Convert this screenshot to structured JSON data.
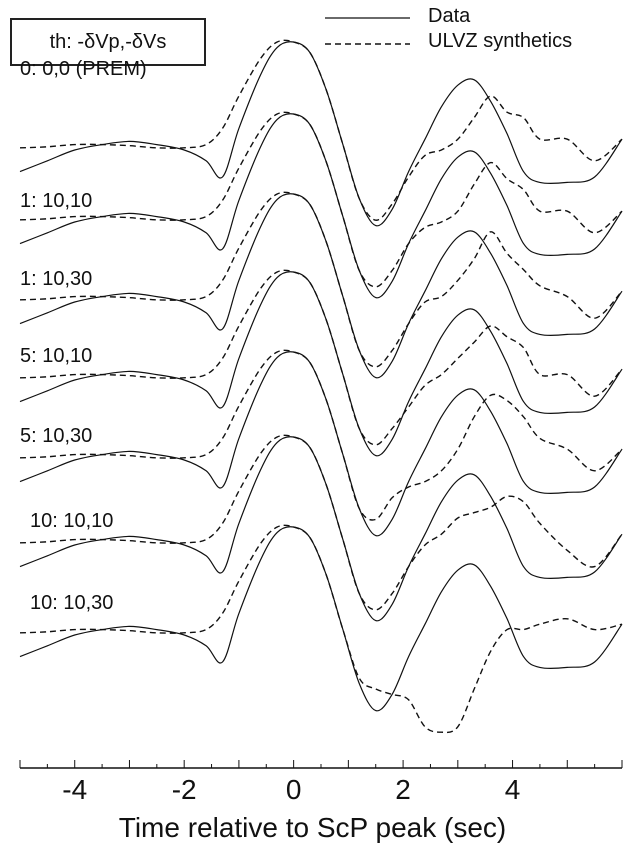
{
  "chart_data": {
    "type": "line",
    "title": "",
    "box_label": "th: -δVp,-δVs",
    "xlabel": "Time relative to ScP peak (sec)",
    "ylabel": "",
    "xlim": [
      -5,
      6
    ],
    "xticks": [
      -4,
      -2,
      0,
      2,
      4
    ],
    "xtick_labels": [
      "-4",
      "-2",
      "0",
      "2",
      "4"
    ],
    "grid": false,
    "legend_position": "top-right",
    "legend": [
      {
        "name": "Data",
        "style": "solid"
      },
      {
        "name": "ULVZ synthetics",
        "style": "dashed"
      }
    ],
    "traces": [
      {
        "label": "0: 0,0 (PREM)",
        "data": {
          "x": [
            -5,
            -4.5,
            -4,
            -3.5,
            -3,
            -2.5,
            -2,
            -1.6,
            -1.3,
            -1,
            -0.6,
            -0.3,
            0,
            0.3,
            0.6,
            0.9,
            1.2,
            1.5,
            1.8,
            2.1,
            2.4,
            2.7,
            3,
            3.3,
            3.6,
            3.9,
            4.2,
            4.5,
            5,
            5.5,
            6
          ],
          "y": [
            -0.2,
            -0.1,
            0,
            0.05,
            0.08,
            0.05,
            0,
            -0.1,
            -0.25,
            0.2,
            0.7,
            0.95,
            1,
            0.9,
            0.55,
            0.05,
            -0.45,
            -0.7,
            -0.55,
            -0.2,
            0.1,
            0.4,
            0.6,
            0.65,
            0.45,
            0.15,
            -0.2,
            -0.3,
            -0.3,
            -0.25,
            0.1
          ]
        },
        "synthetic": {
          "x": [
            -5,
            -4.5,
            -4,
            -3.5,
            -3,
            -2.5,
            -2,
            -1.6,
            -1.3,
            -1,
            -0.6,
            -0.3,
            0,
            0.3,
            0.6,
            0.9,
            1.2,
            1.5,
            1.8,
            2.1,
            2.4,
            2.7,
            3,
            3.3,
            3.6,
            3.9,
            4.2,
            4.5,
            5,
            5.5,
            6
          ],
          "y": [
            0.02,
            0.03,
            0.05,
            0.05,
            0.04,
            0.02,
            0.02,
            0.05,
            0.2,
            0.5,
            0.85,
            1,
            1,
            0.9,
            0.55,
            0.05,
            -0.45,
            -0.65,
            -0.5,
            -0.25,
            -0.05,
            0,
            0.1,
            0.3,
            0.5,
            0.35,
            0.3,
            0.1,
            0.1,
            -0.1,
            0.1
          ]
        }
      },
      {
        "label": "1: 10,10",
        "data": {
          "x": [
            -5,
            -4.5,
            -4,
            -3.5,
            -3,
            -2.5,
            -2,
            -1.6,
            -1.3,
            -1,
            -0.6,
            -0.3,
            0,
            0.3,
            0.6,
            0.9,
            1.2,
            1.5,
            1.8,
            2.1,
            2.4,
            2.7,
            3,
            3.3,
            3.6,
            3.9,
            4.2,
            4.5,
            5,
            5.5,
            6
          ],
          "y": [
            -0.2,
            -0.1,
            0,
            0.05,
            0.08,
            0.05,
            0,
            -0.1,
            -0.25,
            0.2,
            0.7,
            0.95,
            1,
            0.9,
            0.55,
            0.05,
            -0.45,
            -0.7,
            -0.55,
            -0.2,
            0.1,
            0.4,
            0.6,
            0.65,
            0.45,
            0.15,
            -0.2,
            -0.3,
            -0.3,
            -0.25,
            0.1
          ]
        },
        "synthetic": {
          "x": [
            -5,
            -4.5,
            -4,
            -3.5,
            -3,
            -2.5,
            -2,
            -1.6,
            -1.3,
            -1,
            -0.6,
            -0.3,
            0,
            0.3,
            0.6,
            0.9,
            1.2,
            1.5,
            1.8,
            2.1,
            2.4,
            2.7,
            3,
            3.3,
            3.6,
            3.9,
            4.2,
            4.5,
            5,
            5.5,
            6
          ],
          "y": [
            0.02,
            0.03,
            0.05,
            0.05,
            0.04,
            0.02,
            0.02,
            0.05,
            0.2,
            0.5,
            0.85,
            1,
            1,
            0.9,
            0.55,
            0.05,
            -0.45,
            -0.6,
            -0.45,
            -0.2,
            -0.05,
            0,
            0.1,
            0.35,
            0.55,
            0.4,
            0.3,
            0.1,
            0.1,
            -0.1,
            0.1
          ]
        }
      },
      {
        "label": "1: 10,30",
        "data": {
          "x": [
            -5,
            -4.5,
            -4,
            -3.5,
            -3,
            -2.5,
            -2,
            -1.6,
            -1.3,
            -1,
            -0.6,
            -0.3,
            0,
            0.3,
            0.6,
            0.9,
            1.2,
            1.5,
            1.8,
            2.1,
            2.4,
            2.7,
            3,
            3.3,
            3.6,
            3.9,
            4.2,
            4.5,
            5,
            5.5,
            6
          ],
          "y": [
            -0.2,
            -0.1,
            0,
            0.05,
            0.08,
            0.05,
            0,
            -0.1,
            -0.25,
            0.2,
            0.7,
            0.95,
            1,
            0.9,
            0.55,
            0.05,
            -0.45,
            -0.7,
            -0.55,
            -0.2,
            0.1,
            0.4,
            0.6,
            0.65,
            0.45,
            0.15,
            -0.2,
            -0.3,
            -0.3,
            -0.25,
            0.1
          ]
        },
        "synthetic": {
          "x": [
            -5,
            -4.5,
            -4,
            -3.5,
            -3,
            -2.5,
            -2,
            -1.6,
            -1.3,
            -1,
            -0.6,
            -0.3,
            0,
            0.3,
            0.6,
            0.9,
            1.2,
            1.5,
            1.8,
            2.1,
            2.4,
            2.7,
            3,
            3.3,
            3.6,
            3.9,
            4.2,
            4.5,
            5,
            5.5,
            6
          ],
          "y": [
            0.02,
            0.03,
            0.05,
            0.05,
            0.04,
            0.02,
            0.02,
            0.05,
            0.2,
            0.5,
            0.85,
            1,
            1,
            0.9,
            0.55,
            0.05,
            -0.45,
            -0.6,
            -0.45,
            -0.2,
            0,
            0.05,
            0.2,
            0.4,
            0.65,
            0.45,
            0.3,
            0.15,
            0.05,
            -0.15,
            0.1
          ]
        }
      },
      {
        "label": "5: 10,10",
        "data": {
          "x": [
            -5,
            -4.5,
            -4,
            -3.5,
            -3,
            -2.5,
            -2,
            -1.6,
            -1.3,
            -1,
            -0.6,
            -0.3,
            0,
            0.3,
            0.6,
            0.9,
            1.2,
            1.5,
            1.8,
            2.1,
            2.4,
            2.7,
            3,
            3.3,
            3.6,
            3.9,
            4.2,
            4.5,
            5,
            5.5,
            6
          ],
          "y": [
            -0.2,
            -0.1,
            0,
            0.05,
            0.08,
            0.05,
            0,
            -0.1,
            -0.25,
            0.2,
            0.7,
            0.95,
            1,
            0.9,
            0.55,
            0.05,
            -0.45,
            -0.7,
            -0.55,
            -0.2,
            0.1,
            0.4,
            0.6,
            0.65,
            0.45,
            0.15,
            -0.2,
            -0.3,
            -0.3,
            -0.25,
            0.1
          ]
        },
        "synthetic": {
          "x": [
            -5,
            -4.5,
            -4,
            -3.5,
            -3,
            -2.5,
            -2,
            -1.6,
            -1.3,
            -1,
            -0.6,
            -0.3,
            0,
            0.3,
            0.6,
            0.9,
            1.2,
            1.5,
            1.8,
            2.1,
            2.4,
            2.7,
            3,
            3.3,
            3.6,
            3.9,
            4.2,
            4.5,
            5,
            5.5,
            6
          ],
          "y": [
            0.02,
            0.03,
            0.05,
            0.05,
            0.04,
            0.02,
            0.02,
            0.05,
            0.2,
            0.5,
            0.85,
            1,
            1,
            0.9,
            0.55,
            0.05,
            -0.45,
            -0.6,
            -0.45,
            -0.25,
            -0.05,
            0.05,
            0.2,
            0.35,
            0.5,
            0.4,
            0.3,
            0.05,
            0.05,
            -0.15,
            0.1
          ]
        }
      },
      {
        "label": "5: 10,30",
        "data": {
          "x": [
            -5,
            -4.5,
            -4,
            -3.5,
            -3,
            -2.5,
            -2,
            -1.6,
            -1.3,
            -1,
            -0.6,
            -0.3,
            0,
            0.3,
            0.6,
            0.9,
            1.2,
            1.5,
            1.8,
            2.1,
            2.4,
            2.7,
            3,
            3.3,
            3.6,
            3.9,
            4.2,
            4.5,
            5,
            5.5,
            6
          ],
          "y": [
            -0.2,
            -0.1,
            0,
            0.05,
            0.08,
            0.05,
            0,
            -0.1,
            -0.25,
            0.2,
            0.7,
            0.95,
            1,
            0.9,
            0.55,
            0.05,
            -0.45,
            -0.7,
            -0.55,
            -0.2,
            0.1,
            0.4,
            0.6,
            0.65,
            0.45,
            0.15,
            -0.2,
            -0.3,
            -0.3,
            -0.25,
            0.1
          ]
        },
        "synthetic": {
          "x": [
            -5,
            -4.5,
            -4,
            -3.5,
            -3,
            -2.5,
            -2,
            -1.6,
            -1.3,
            -1,
            -0.6,
            -0.3,
            0,
            0.3,
            0.6,
            0.9,
            1.2,
            1.5,
            1.8,
            2.1,
            2.4,
            2.7,
            3,
            3.3,
            3.6,
            3.9,
            4.2,
            4.5,
            5,
            5.5,
            6
          ],
          "y": [
            0.02,
            0.03,
            0.05,
            0.05,
            0.04,
            0.02,
            0.02,
            0.05,
            0.2,
            0.5,
            0.85,
            1,
            1,
            0.9,
            0.55,
            0.05,
            -0.45,
            -0.55,
            -0.35,
            -0.25,
            -0.2,
            -0.1,
            0.1,
            0.4,
            0.6,
            0.55,
            0.4,
            0.2,
            0.1,
            -0.1,
            0.1
          ]
        }
      },
      {
        "label": "10: 10,10",
        "data": {
          "x": [
            -5,
            -4.5,
            -4,
            -3.5,
            -3,
            -2.5,
            -2,
            -1.6,
            -1.3,
            -1,
            -0.6,
            -0.3,
            0,
            0.3,
            0.6,
            0.9,
            1.2,
            1.5,
            1.8,
            2.1,
            2.4,
            2.7,
            3,
            3.3,
            3.6,
            3.9,
            4.2,
            4.5,
            5,
            5.5,
            6
          ],
          "y": [
            -0.2,
            -0.1,
            0,
            0.05,
            0.08,
            0.05,
            0,
            -0.1,
            -0.25,
            0.2,
            0.7,
            0.95,
            1,
            0.9,
            0.55,
            0.05,
            -0.45,
            -0.7,
            -0.55,
            -0.2,
            0.1,
            0.4,
            0.6,
            0.65,
            0.45,
            0.15,
            -0.2,
            -0.3,
            -0.3,
            -0.25,
            0.1
          ]
        },
        "synthetic": {
          "x": [
            -5,
            -4.5,
            -4,
            -3.5,
            -3,
            -2.5,
            -2,
            -1.6,
            -1.3,
            -1,
            -0.6,
            -0.3,
            0,
            0.3,
            0.6,
            0.9,
            1.2,
            1.5,
            1.8,
            2.1,
            2.4,
            2.7,
            3,
            3.3,
            3.6,
            3.9,
            4.2,
            4.5,
            5,
            5.5,
            6
          ],
          "y": [
            0.02,
            0.03,
            0.05,
            0.05,
            0.04,
            0.02,
            0.02,
            0.05,
            0.2,
            0.5,
            0.85,
            1,
            1,
            0.9,
            0.55,
            0.05,
            -0.45,
            -0.6,
            -0.45,
            -0.2,
            0,
            0.1,
            0.25,
            0.3,
            0.35,
            0.45,
            0.4,
            0.2,
            -0.05,
            -0.2,
            0.1
          ]
        }
      },
      {
        "label": "10: 10,30",
        "data": {
          "x": [
            -5,
            -4.5,
            -4,
            -3.5,
            -3,
            -2.5,
            -2,
            -1.6,
            -1.3,
            -1,
            -0.6,
            -0.3,
            0,
            0.3,
            0.6,
            0.9,
            1.2,
            1.5,
            1.8,
            2.1,
            2.4,
            2.7,
            3,
            3.3,
            3.6,
            3.9,
            4.2,
            4.5,
            5,
            5.5,
            6
          ],
          "y": [
            -0.2,
            -0.1,
            0,
            0.05,
            0.08,
            0.05,
            0,
            -0.1,
            -0.25,
            0.2,
            0.7,
            0.95,
            1,
            0.9,
            0.55,
            0.05,
            -0.45,
            -0.7,
            -0.55,
            -0.2,
            0.1,
            0.4,
            0.6,
            0.65,
            0.45,
            0.15,
            -0.2,
            -0.3,
            -0.3,
            -0.25,
            0.1
          ]
        },
        "synthetic": {
          "x": [
            -5,
            -4.5,
            -4,
            -3.5,
            -3,
            -2.5,
            -2,
            -1.6,
            -1.3,
            -1,
            -0.6,
            -0.3,
            0,
            0.3,
            0.6,
            0.9,
            1.2,
            1.5,
            1.8,
            2.1,
            2.4,
            2.7,
            3,
            3.3,
            3.6,
            3.9,
            4.2,
            4.5,
            5,
            5.5,
            6
          ],
          "y": [
            0.02,
            0.03,
            0.05,
            0.05,
            0.04,
            0.02,
            0.02,
            0.05,
            0.2,
            0.5,
            0.85,
            1,
            1,
            0.9,
            0.55,
            0.05,
            -0.4,
            -0.5,
            -0.55,
            -0.6,
            -0.85,
            -0.9,
            -0.85,
            -0.5,
            -0.15,
            0.05,
            0.05,
            0.1,
            0.15,
            0.05,
            0.1
          ]
        }
      }
    ]
  }
}
